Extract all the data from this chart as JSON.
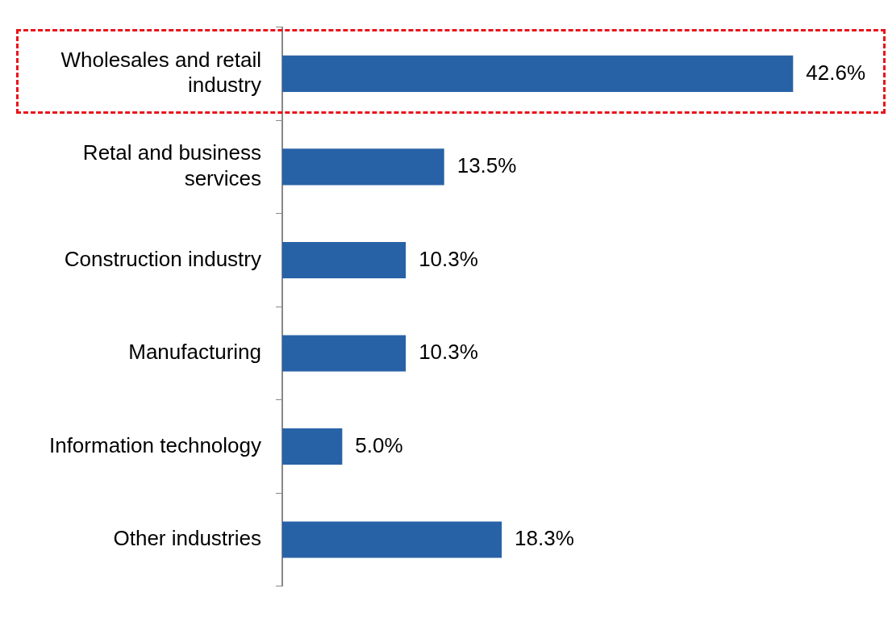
{
  "chart_data": {
    "type": "bar",
    "orientation": "horizontal",
    "categories": [
      "Wholesales and retail industry",
      "Retal and business services",
      "Construction industry",
      "Manufacturing",
      "Information technology",
      "Other industries"
    ],
    "values": [
      42.6,
      13.5,
      10.3,
      10.3,
      5.0,
      18.3
    ],
    "value_labels": [
      "42.6%",
      "13.5%",
      "10.3%",
      "10.3%",
      "5.0%",
      "18.3%"
    ],
    "color": "#2862a6",
    "legend": false
  }
}
